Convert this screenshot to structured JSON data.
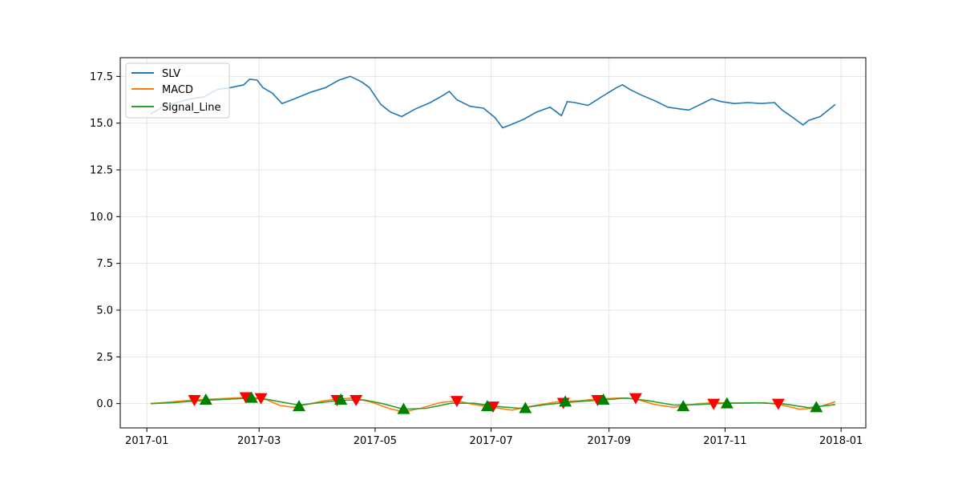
{
  "chart_data": {
    "type": "line",
    "title": "",
    "xlabel": "",
    "ylabel": "",
    "xlim": [
      "2016-12-18",
      "2018-01-14"
    ],
    "ylim": [
      -1.3,
      18.5
    ],
    "grid": true,
    "legend_position": "top-left",
    "x_ticks": [
      "2017-01",
      "2017-03",
      "2017-05",
      "2017-07",
      "2017-09",
      "2017-11",
      "2018-01"
    ],
    "y_ticks": [
      "0.0",
      "2.5",
      "5.0",
      "7.5",
      "10.0",
      "12.5",
      "15.0",
      "17.5"
    ],
    "series": [
      {
        "name": "SLV",
        "color": "#1f77b4",
        "points": [
          [
            "2017-01-03",
            15.5
          ],
          [
            "2017-01-10",
            15.9
          ],
          [
            "2017-01-17",
            16.1
          ],
          [
            "2017-01-24",
            16.3
          ],
          [
            "2017-01-31",
            16.4
          ],
          [
            "2017-02-07",
            16.8
          ],
          [
            "2017-02-14",
            16.9
          ],
          [
            "2017-02-21",
            17.05
          ],
          [
            "2017-02-24",
            17.35
          ],
          [
            "2017-02-28",
            17.3
          ],
          [
            "2017-03-03",
            16.9
          ],
          [
            "2017-03-08",
            16.6
          ],
          [
            "2017-03-13",
            16.05
          ],
          [
            "2017-03-17",
            16.2
          ],
          [
            "2017-03-22",
            16.4
          ],
          [
            "2017-03-28",
            16.65
          ],
          [
            "2017-04-05",
            16.9
          ],
          [
            "2017-04-12",
            17.3
          ],
          [
            "2017-04-18",
            17.5
          ],
          [
            "2017-04-24",
            17.2
          ],
          [
            "2017-04-28",
            16.9
          ],
          [
            "2017-05-04",
            16.0
          ],
          [
            "2017-05-09",
            15.6
          ],
          [
            "2017-05-15",
            15.35
          ],
          [
            "2017-05-22",
            15.75
          ],
          [
            "2017-05-30",
            16.1
          ],
          [
            "2017-06-06",
            16.5
          ],
          [
            "2017-06-09",
            16.7
          ],
          [
            "2017-06-13",
            16.25
          ],
          [
            "2017-06-20",
            15.9
          ],
          [
            "2017-06-27",
            15.8
          ],
          [
            "2017-07-03",
            15.3
          ],
          [
            "2017-07-07",
            14.75
          ],
          [
            "2017-07-11",
            14.9
          ],
          [
            "2017-07-18",
            15.2
          ],
          [
            "2017-07-25",
            15.6
          ],
          [
            "2017-08-01",
            15.85
          ],
          [
            "2017-08-07",
            15.4
          ],
          [
            "2017-08-10",
            16.15
          ],
          [
            "2017-08-14",
            16.1
          ],
          [
            "2017-08-21",
            15.95
          ],
          [
            "2017-08-28",
            16.4
          ],
          [
            "2017-09-05",
            16.9
          ],
          [
            "2017-09-08",
            17.05
          ],
          [
            "2017-09-12",
            16.8
          ],
          [
            "2017-09-18",
            16.5
          ],
          [
            "2017-09-25",
            16.2
          ],
          [
            "2017-10-02",
            15.85
          ],
          [
            "2017-10-09",
            15.75
          ],
          [
            "2017-10-13",
            15.7
          ],
          [
            "2017-10-20",
            16.05
          ],
          [
            "2017-10-25",
            16.3
          ],
          [
            "2017-10-30",
            16.15
          ],
          [
            "2017-11-06",
            16.05
          ],
          [
            "2017-11-13",
            16.1
          ],
          [
            "2017-11-20",
            16.05
          ],
          [
            "2017-11-27",
            16.1
          ],
          [
            "2017-12-01",
            15.7
          ],
          [
            "2017-12-06",
            15.35
          ],
          [
            "2017-12-12",
            14.9
          ],
          [
            "2017-12-15",
            15.15
          ],
          [
            "2017-12-21",
            15.35
          ],
          [
            "2017-12-29",
            16.0
          ]
        ]
      },
      {
        "name": "MACD",
        "color": "#ff7f0e",
        "points": [
          [
            "2017-01-03",
            0.0
          ],
          [
            "2017-01-15",
            0.1
          ],
          [
            "2017-01-26",
            0.2
          ],
          [
            "2017-02-06",
            0.25
          ],
          [
            "2017-02-16",
            0.3
          ],
          [
            "2017-02-25",
            0.35
          ],
          [
            "2017-03-05",
            0.2
          ],
          [
            "2017-03-12",
            -0.1
          ],
          [
            "2017-03-19",
            -0.2
          ],
          [
            "2017-03-26",
            -0.05
          ],
          [
            "2017-04-04",
            0.15
          ],
          [
            "2017-04-12",
            0.25
          ],
          [
            "2017-04-20",
            0.3
          ],
          [
            "2017-04-30",
            0.05
          ],
          [
            "2017-05-08",
            -0.25
          ],
          [
            "2017-05-16",
            -0.45
          ],
          [
            "2017-05-25",
            -0.25
          ],
          [
            "2017-06-04",
            0.05
          ],
          [
            "2017-06-13",
            0.15
          ],
          [
            "2017-06-22",
            -0.05
          ],
          [
            "2017-07-02",
            -0.2
          ],
          [
            "2017-07-12",
            -0.35
          ],
          [
            "2017-07-24",
            -0.1
          ],
          [
            "2017-08-05",
            0.1
          ],
          [
            "2017-08-16",
            0.15
          ],
          [
            "2017-08-26",
            0.25
          ],
          [
            "2017-09-07",
            0.3
          ],
          [
            "2017-09-15",
            0.25
          ],
          [
            "2017-09-25",
            -0.05
          ],
          [
            "2017-10-05",
            -0.2
          ],
          [
            "2017-10-18",
            0.0
          ],
          [
            "2017-10-28",
            0.05
          ],
          [
            "2017-11-10",
            0.02
          ],
          [
            "2017-11-22",
            0.05
          ],
          [
            "2017-12-02",
            -0.1
          ],
          [
            "2017-12-10",
            -0.3
          ],
          [
            "2017-12-18",
            -0.25
          ],
          [
            "2017-12-29",
            0.1
          ]
        ]
      },
      {
        "name": "Signal_Line",
        "color": "#2ca02c",
        "points": [
          [
            "2017-01-03",
            0.0
          ],
          [
            "2017-01-15",
            0.05
          ],
          [
            "2017-01-28",
            0.15
          ],
          [
            "2017-02-10",
            0.22
          ],
          [
            "2017-02-22",
            0.28
          ],
          [
            "2017-03-04",
            0.25
          ],
          [
            "2017-03-13",
            0.08
          ],
          [
            "2017-03-22",
            -0.08
          ],
          [
            "2017-04-02",
            0.05
          ],
          [
            "2017-04-14",
            0.18
          ],
          [
            "2017-04-25",
            0.2
          ],
          [
            "2017-05-05",
            0.0
          ],
          [
            "2017-05-16",
            -0.3
          ],
          [
            "2017-05-28",
            -0.25
          ],
          [
            "2017-06-10",
            0.02
          ],
          [
            "2017-06-22",
            0.02
          ],
          [
            "2017-07-04",
            -0.15
          ],
          [
            "2017-07-16",
            -0.25
          ],
          [
            "2017-07-30",
            -0.05
          ],
          [
            "2017-08-12",
            0.08
          ],
          [
            "2017-08-26",
            0.18
          ],
          [
            "2017-09-10",
            0.3
          ],
          [
            "2017-09-22",
            0.15
          ],
          [
            "2017-10-05",
            -0.08
          ],
          [
            "2017-10-18",
            -0.05
          ],
          [
            "2017-11-02",
            0.02
          ],
          [
            "2017-11-18",
            0.04
          ],
          [
            "2017-12-02",
            -0.02
          ],
          [
            "2017-12-15",
            -0.22
          ],
          [
            "2017-12-29",
            -0.05
          ]
        ]
      }
    ],
    "sell_signals": {
      "marker": "triangle-down",
      "color": "#ff0000",
      "points": [
        [
          "2017-01-26",
          0.2
        ],
        [
          "2017-02-22",
          0.35
        ],
        [
          "2017-03-02",
          0.3
        ],
        [
          "2017-04-11",
          0.2
        ],
        [
          "2017-04-21",
          0.2
        ],
        [
          "2017-06-13",
          0.15
        ],
        [
          "2017-07-02",
          -0.15
        ],
        [
          "2017-08-08",
          0.05
        ],
        [
          "2017-08-26",
          0.2
        ],
        [
          "2017-09-15",
          0.3
        ],
        [
          "2017-10-26",
          0.0
        ],
        [
          "2017-11-29",
          0.0
        ]
      ]
    },
    "buy_signals": {
      "marker": "triangle-up",
      "color": "#008000",
      "points": [
        [
          "2017-02-01",
          0.2
        ],
        [
          "2017-02-25",
          0.3
        ],
        [
          "2017-03-22",
          -0.15
        ],
        [
          "2017-04-13",
          0.2
        ],
        [
          "2017-05-16",
          -0.3
        ],
        [
          "2017-06-29",
          -0.15
        ],
        [
          "2017-07-19",
          -0.25
        ],
        [
          "2017-08-09",
          0.1
        ],
        [
          "2017-08-29",
          0.2
        ],
        [
          "2017-10-10",
          -0.15
        ],
        [
          "2017-11-02",
          0.0
        ],
        [
          "2017-12-19",
          -0.2
        ]
      ]
    }
  }
}
